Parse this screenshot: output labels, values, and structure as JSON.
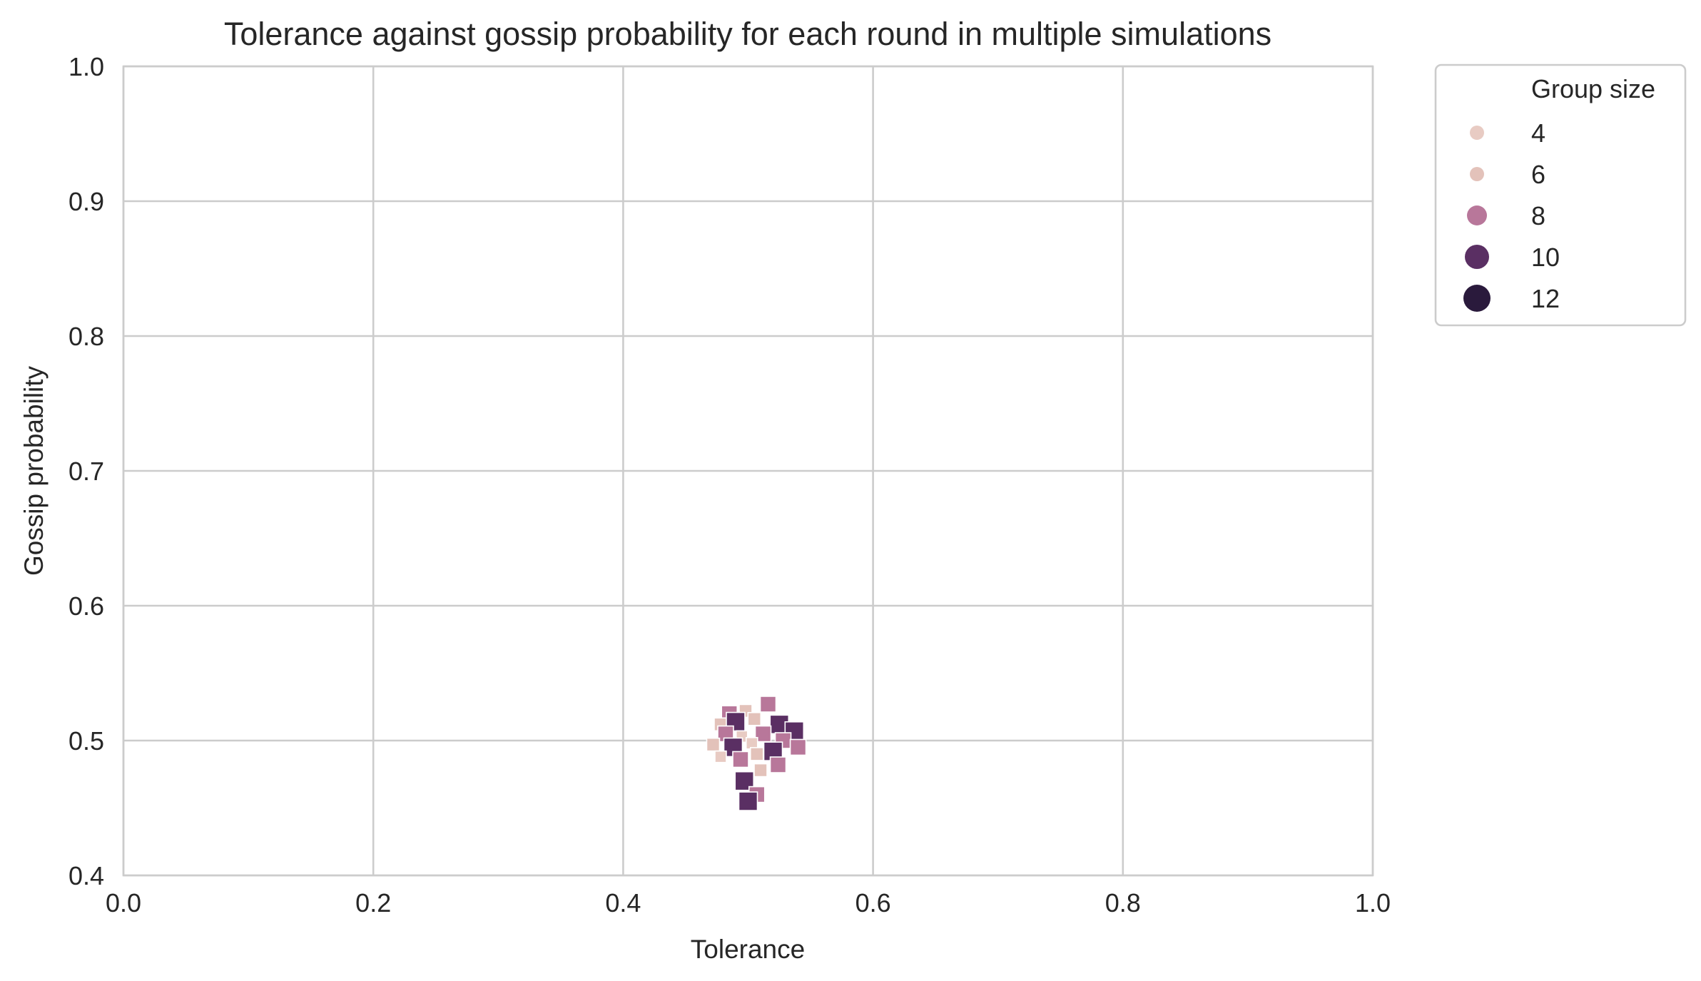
{
  "chart_data": {
    "type": "scatter",
    "title": "Tolerance against gossip probability for each round in multiple simulations",
    "xlabel": "Tolerance",
    "ylabel": "Gossip probability",
    "xlim": [
      0,
      1
    ],
    "ylim": [
      0.4,
      1.0
    ],
    "xticks": [
      "0.0",
      "0.2",
      "0.4",
      "0.6",
      "0.8",
      "1.0"
    ],
    "yticks": [
      "0.4",
      "0.5",
      "0.6",
      "0.7",
      "0.8",
      "0.9",
      "1.0"
    ],
    "grid": true,
    "marker": "square",
    "legend": {
      "title": "Group size",
      "placement": "outside upper right",
      "entries": [
        {
          "label": "4",
          "color": "#e8cbc3"
        },
        {
          "label": "6",
          "color": "#e3c2ba"
        },
        {
          "label": "8",
          "color": "#b8779a"
        },
        {
          "label": "10",
          "color": "#5a2f63"
        },
        {
          "label": "12",
          "color": "#2a1a3c"
        }
      ]
    },
    "points": [
      {
        "x": 0.516,
        "y": 0.527,
        "group": 8
      },
      {
        "x": 0.498,
        "y": 0.522,
        "group": 6
      },
      {
        "x": 0.485,
        "y": 0.52,
        "group": 8
      },
      {
        "x": 0.478,
        "y": 0.512,
        "group": 6
      },
      {
        "x": 0.49,
        "y": 0.514,
        "group": 10
      },
      {
        "x": 0.505,
        "y": 0.516,
        "group": 6
      },
      {
        "x": 0.525,
        "y": 0.512,
        "group": 10
      },
      {
        "x": 0.537,
        "y": 0.507,
        "group": 10
      },
      {
        "x": 0.482,
        "y": 0.505,
        "group": 8
      },
      {
        "x": 0.495,
        "y": 0.503,
        "group": 4
      },
      {
        "x": 0.512,
        "y": 0.505,
        "group": 8
      },
      {
        "x": 0.528,
        "y": 0.5,
        "group": 8
      },
      {
        "x": 0.472,
        "y": 0.497,
        "group": 6
      },
      {
        "x": 0.488,
        "y": 0.495,
        "group": 10
      },
      {
        "x": 0.503,
        "y": 0.498,
        "group": 4
      },
      {
        "x": 0.54,
        "y": 0.495,
        "group": 8
      },
      {
        "x": 0.507,
        "y": 0.49,
        "group": 6
      },
      {
        "x": 0.52,
        "y": 0.492,
        "group": 10
      },
      {
        "x": 0.478,
        "y": 0.488,
        "group": 4
      },
      {
        "x": 0.494,
        "y": 0.486,
        "group": 8
      },
      {
        "x": 0.524,
        "y": 0.482,
        "group": 8
      },
      {
        "x": 0.51,
        "y": 0.478,
        "group": 6
      },
      {
        "x": 0.497,
        "y": 0.47,
        "group": 10
      },
      {
        "x": 0.507,
        "y": 0.46,
        "group": 8
      },
      {
        "x": 0.5,
        "y": 0.455,
        "group": 10
      }
    ]
  }
}
